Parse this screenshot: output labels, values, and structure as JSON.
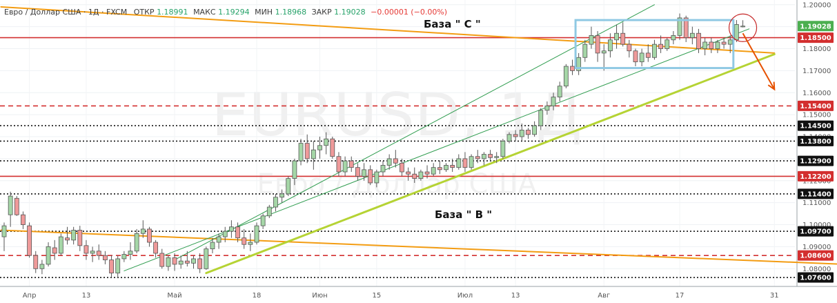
{
  "header": {
    "symbol_text": "Евро / Доллар США · 1Д · FXCM",
    "open_label": "ОТКР",
    "open_value": "1.18991",
    "high_label": "МАКС",
    "high_value": "1.19294",
    "low_label": "МИН",
    "low_value": "1.18968",
    "close_label": "ЗАКР",
    "close_value": "1.19028",
    "change_value": "−0.00001 (−0.00%)"
  },
  "watermark": {
    "symbol": "EURUSD, 1Д",
    "name": "Евро / Доллар США"
  },
  "annotations": {
    "base_c": "База \" С \"",
    "base_b": "База \" В \""
  },
  "colors": {
    "up_candle": "#a5d6a7",
    "down_candle": "#ef9a9a",
    "candle_border": "#555555",
    "resistance_red": "#d32f2f",
    "orange_trend": "#f39c12",
    "green_support": "#b5d334",
    "channel_green": "#2e9c4e",
    "box_blue": "#8fc9e3",
    "current_price_badge": "#4caf50"
  },
  "chart_data": {
    "type": "candlestick",
    "ylim": [
      1.0735,
      1.2015
    ],
    "y_ticks": [
      "1.20000",
      "1.19000",
      "1.18000",
      "1.17000",
      "1.16000",
      "1.15000",
      "1.14000",
      "1.13000",
      "1.12000",
      "1.11000",
      "1.10000",
      "1.09000",
      "1.08000"
    ],
    "x_ticks": [
      "Апр",
      "13",
      "Май",
      "18",
      "Июн",
      "15",
      "Июл",
      "13",
      "Авг",
      "17",
      "31"
    ],
    "price_badges": [
      {
        "label": "1.19028",
        "value": 1.19028,
        "kind": "current"
      },
      {
        "label": "1.18500",
        "value": 1.185,
        "kind": "red"
      },
      {
        "label": "1.15400",
        "value": 1.154,
        "kind": "red"
      },
      {
        "label": "1.14500",
        "value": 1.145,
        "kind": "black"
      },
      {
        "label": "1.13800",
        "value": 1.138,
        "kind": "black"
      },
      {
        "label": "1.12900",
        "value": 1.129,
        "kind": "black"
      },
      {
        "label": "1.12200",
        "value": 1.122,
        "kind": "red"
      },
      {
        "label": "1.11400",
        "value": 1.114,
        "kind": "black"
      },
      {
        "label": "1.09700",
        "value": 1.097,
        "kind": "black"
      },
      {
        "label": "1.08600",
        "value": 1.086,
        "kind": "red"
      },
      {
        "label": "1.07600",
        "value": 1.076,
        "kind": "black"
      }
    ],
    "horizontal_levels": [
      {
        "value": 1.185,
        "style": "solid",
        "color": "red"
      },
      {
        "value": 1.154,
        "style": "dashed",
        "color": "red"
      },
      {
        "value": 1.145,
        "style": "dotted",
        "color": "black"
      },
      {
        "value": 1.138,
        "style": "dotted",
        "color": "black"
      },
      {
        "value": 1.129,
        "style": "dotted",
        "color": "black"
      },
      {
        "value": 1.122,
        "style": "solid",
        "color": "red"
      },
      {
        "value": 1.114,
        "style": "dotted",
        "color": "black"
      },
      {
        "value": 1.097,
        "style": "dotted",
        "color": "black"
      },
      {
        "value": 1.086,
        "style": "dashed",
        "color": "red"
      },
      {
        "value": 1.076,
        "style": "dotted",
        "color": "black"
      }
    ],
    "candles": [
      {
        "o": 1.0945,
        "h": 1.101,
        "l": 1.088,
        "c": 1.0995
      },
      {
        "o": 1.1045,
        "h": 1.115,
        "l": 1.099,
        "c": 1.113
      },
      {
        "o": 1.112,
        "h": 1.113,
        "l": 1.104,
        "c": 1.1045
      },
      {
        "o": 1.1045,
        "h": 1.106,
        "l": 1.098,
        "c": 1.1
      },
      {
        "o": 1.0995,
        "h": 1.101,
        "l": 1.085,
        "c": 1.086
      },
      {
        "o": 1.086,
        "h": 1.088,
        "l": 1.078,
        "c": 1.08
      },
      {
        "o": 1.08,
        "h": 1.084,
        "l": 1.0775,
        "c": 1.082
      },
      {
        "o": 1.082,
        "h": 1.092,
        "l": 1.081,
        "c": 1.09
      },
      {
        "o": 1.0895,
        "h": 1.093,
        "l": 1.084,
        "c": 1.087
      },
      {
        "o": 1.087,
        "h": 1.096,
        "l": 1.086,
        "c": 1.0945
      },
      {
        "o": 1.094,
        "h": 1.099,
        "l": 1.091,
        "c": 1.093
      },
      {
        "o": 1.093,
        "h": 1.099,
        "l": 1.091,
        "c": 1.0975
      },
      {
        "o": 1.0975,
        "h": 1.0995,
        "l": 1.088,
        "c": 1.0905
      },
      {
        "o": 1.0905,
        "h": 1.093,
        "l": 1.084,
        "c": 1.087
      },
      {
        "o": 1.087,
        "h": 1.09,
        "l": 1.083,
        "c": 1.088
      },
      {
        "o": 1.088,
        "h": 1.091,
        "l": 1.084,
        "c": 1.086
      },
      {
        "o": 1.086,
        "h": 1.088,
        "l": 1.082,
        "c": 1.084
      },
      {
        "o": 1.084,
        "h": 1.086,
        "l": 1.076,
        "c": 1.078
      },
      {
        "o": 1.078,
        "h": 1.086,
        "l": 1.076,
        "c": 1.0845
      },
      {
        "o": 1.0845,
        "h": 1.088,
        "l": 1.083,
        "c": 1.0865
      },
      {
        "o": 1.0865,
        "h": 1.092,
        "l": 1.084,
        "c": 1.088
      },
      {
        "o": 1.088,
        "h": 1.098,
        "l": 1.087,
        "c": 1.096
      },
      {
        "o": 1.096,
        "h": 1.102,
        "l": 1.094,
        "c": 1.098
      },
      {
        "o": 1.098,
        "h": 1.099,
        "l": 1.09,
        "c": 1.092
      },
      {
        "o": 1.092,
        "h": 1.093,
        "l": 1.085,
        "c": 1.087
      },
      {
        "o": 1.087,
        "h": 1.089,
        "l": 1.08,
        "c": 1.081
      },
      {
        "o": 1.081,
        "h": 1.086,
        "l": 1.079,
        "c": 1.085
      },
      {
        "o": 1.085,
        "h": 1.087,
        "l": 1.079,
        "c": 1.082
      },
      {
        "o": 1.082,
        "h": 1.086,
        "l": 1.08,
        "c": 1.0835
      },
      {
        "o": 1.0835,
        "h": 1.088,
        "l": 1.081,
        "c": 1.0825
      },
      {
        "o": 1.0825,
        "h": 1.086,
        "l": 1.08,
        "c": 1.0845
      },
      {
        "o": 1.0845,
        "h": 1.087,
        "l": 1.078,
        "c": 1.08
      },
      {
        "o": 1.08,
        "h": 1.09,
        "l": 1.0795,
        "c": 1.089
      },
      {
        "o": 1.089,
        "h": 1.094,
        "l": 1.087,
        "c": 1.092
      },
      {
        "o": 1.092,
        "h": 1.096,
        "l": 1.089,
        "c": 1.0945
      },
      {
        "o": 1.0945,
        "h": 1.099,
        "l": 1.092,
        "c": 1.097
      },
      {
        "o": 1.097,
        "h": 1.102,
        "l": 1.094,
        "c": 1.099
      },
      {
        "o": 1.099,
        "h": 1.101,
        "l": 1.092,
        "c": 1.094
      },
      {
        "o": 1.094,
        "h": 1.098,
        "l": 1.089,
        "c": 1.091
      },
      {
        "o": 1.091,
        "h": 1.096,
        "l": 1.088,
        "c": 1.092
      },
      {
        "o": 1.092,
        "h": 1.101,
        "l": 1.091,
        "c": 1.0995
      },
      {
        "o": 1.0995,
        "h": 1.105,
        "l": 1.098,
        "c": 1.104
      },
      {
        "o": 1.104,
        "h": 1.109,
        "l": 1.103,
        "c": 1.108
      },
      {
        "o": 1.108,
        "h": 1.114,
        "l": 1.106,
        "c": 1.1125
      },
      {
        "o": 1.1125,
        "h": 1.116,
        "l": 1.11,
        "c": 1.114
      },
      {
        "o": 1.114,
        "h": 1.122,
        "l": 1.113,
        "c": 1.121
      },
      {
        "o": 1.121,
        "h": 1.13,
        "l": 1.118,
        "c": 1.129
      },
      {
        "o": 1.129,
        "h": 1.139,
        "l": 1.127,
        "c": 1.137
      },
      {
        "o": 1.137,
        "h": 1.141,
        "l": 1.128,
        "c": 1.13
      },
      {
        "o": 1.13,
        "h": 1.138,
        "l": 1.125,
        "c": 1.134
      },
      {
        "o": 1.134,
        "h": 1.14,
        "l": 1.13,
        "c": 1.136
      },
      {
        "o": 1.136,
        "h": 1.142,
        "l": 1.132,
        "c": 1.139
      },
      {
        "o": 1.139,
        "h": 1.14,
        "l": 1.13,
        "c": 1.131
      },
      {
        "o": 1.131,
        "h": 1.133,
        "l": 1.122,
        "c": 1.124
      },
      {
        "o": 1.124,
        "h": 1.131,
        "l": 1.122,
        "c": 1.129
      },
      {
        "o": 1.129,
        "h": 1.131,
        "l": 1.124,
        "c": 1.126
      },
      {
        "o": 1.126,
        "h": 1.128,
        "l": 1.12,
        "c": 1.122
      },
      {
        "o": 1.122,
        "h": 1.128,
        "l": 1.12,
        "c": 1.125
      },
      {
        "o": 1.125,
        "h": 1.127,
        "l": 1.118,
        "c": 1.119
      },
      {
        "o": 1.119,
        "h": 1.125,
        "l": 1.117,
        "c": 1.124
      },
      {
        "o": 1.124,
        "h": 1.129,
        "l": 1.122,
        "c": 1.127
      },
      {
        "o": 1.127,
        "h": 1.132,
        "l": 1.125,
        "c": 1.13
      },
      {
        "o": 1.13,
        "h": 1.134,
        "l": 1.126,
        "c": 1.128
      },
      {
        "o": 1.128,
        "h": 1.13,
        "l": 1.122,
        "c": 1.124
      },
      {
        "o": 1.124,
        "h": 1.126,
        "l": 1.12,
        "c": 1.123
      },
      {
        "o": 1.123,
        "h": 1.126,
        "l": 1.119,
        "c": 1.121
      },
      {
        "o": 1.121,
        "h": 1.125,
        "l": 1.12,
        "c": 1.124
      },
      {
        "o": 1.124,
        "h": 1.127,
        "l": 1.121,
        "c": 1.123
      },
      {
        "o": 1.123,
        "h": 1.128,
        "l": 1.122,
        "c": 1.126
      },
      {
        "o": 1.126,
        "h": 1.129,
        "l": 1.123,
        "c": 1.125
      },
      {
        "o": 1.125,
        "h": 1.128,
        "l": 1.124,
        "c": 1.127
      },
      {
        "o": 1.127,
        "h": 1.13,
        "l": 1.124,
        "c": 1.126
      },
      {
        "o": 1.126,
        "h": 1.132,
        "l": 1.125,
        "c": 1.13
      },
      {
        "o": 1.13,
        "h": 1.133,
        "l": 1.124,
        "c": 1.126
      },
      {
        "o": 1.126,
        "h": 1.132,
        "l": 1.125,
        "c": 1.131
      },
      {
        "o": 1.131,
        "h": 1.134,
        "l": 1.128,
        "c": 1.13
      },
      {
        "o": 1.13,
        "h": 1.133,
        "l": 1.127,
        "c": 1.132
      },
      {
        "o": 1.132,
        "h": 1.134,
        "l": 1.129,
        "c": 1.1305
      },
      {
        "o": 1.1305,
        "h": 1.133,
        "l": 1.128,
        "c": 1.131
      },
      {
        "o": 1.131,
        "h": 1.139,
        "l": 1.13,
        "c": 1.138
      },
      {
        "o": 1.138,
        "h": 1.142,
        "l": 1.137,
        "c": 1.141
      },
      {
        "o": 1.141,
        "h": 1.143,
        "l": 1.138,
        "c": 1.14
      },
      {
        "o": 1.14,
        "h": 1.146,
        "l": 1.138,
        "c": 1.143
      },
      {
        "o": 1.143,
        "h": 1.144,
        "l": 1.139,
        "c": 1.141
      },
      {
        "o": 1.141,
        "h": 1.147,
        "l": 1.14,
        "c": 1.145
      },
      {
        "o": 1.145,
        "h": 1.153,
        "l": 1.143,
        "c": 1.152
      },
      {
        "o": 1.152,
        "h": 1.156,
        "l": 1.15,
        "c": 1.154
      },
      {
        "o": 1.154,
        "h": 1.16,
        "l": 1.152,
        "c": 1.158
      },
      {
        "o": 1.158,
        "h": 1.165,
        "l": 1.156,
        "c": 1.163
      },
      {
        "o": 1.163,
        "h": 1.173,
        "l": 1.162,
        "c": 1.172
      },
      {
        "o": 1.172,
        "h": 1.175,
        "l": 1.168,
        "c": 1.17
      },
      {
        "o": 1.17,
        "h": 1.178,
        "l": 1.168,
        "c": 1.176
      },
      {
        "o": 1.176,
        "h": 1.184,
        "l": 1.174,
        "c": 1.182
      },
      {
        "o": 1.182,
        "h": 1.19,
        "l": 1.18,
        "c": 1.186
      },
      {
        "o": 1.186,
        "h": 1.188,
        "l": 1.174,
        "c": 1.178
      },
      {
        "o": 1.178,
        "h": 1.182,
        "l": 1.17,
        "c": 1.179
      },
      {
        "o": 1.179,
        "h": 1.187,
        "l": 1.176,
        "c": 1.184
      },
      {
        "o": 1.184,
        "h": 1.191,
        "l": 1.18,
        "c": 1.187
      },
      {
        "o": 1.187,
        "h": 1.192,
        "l": 1.181,
        "c": 1.182
      },
      {
        "o": 1.182,
        "h": 1.184,
        "l": 1.176,
        "c": 1.179
      },
      {
        "o": 1.179,
        "h": 1.18,
        "l": 1.172,
        "c": 1.174
      },
      {
        "o": 1.174,
        "h": 1.18,
        "l": 1.172,
        "c": 1.178
      },
      {
        "o": 1.178,
        "h": 1.182,
        "l": 1.174,
        "c": 1.176
      },
      {
        "o": 1.176,
        "h": 1.184,
        "l": 1.175,
        "c": 1.182
      },
      {
        "o": 1.182,
        "h": 1.186,
        "l": 1.178,
        "c": 1.18
      },
      {
        "o": 1.18,
        "h": 1.185,
        "l": 1.179,
        "c": 1.184
      },
      {
        "o": 1.184,
        "h": 1.188,
        "l": 1.182,
        "c": 1.186
      },
      {
        "o": 1.186,
        "h": 1.196,
        "l": 1.184,
        "c": 1.194
      },
      {
        "o": 1.194,
        "h": 1.195,
        "l": 1.183,
        "c": 1.185
      },
      {
        "o": 1.185,
        "h": 1.19,
        "l": 1.182,
        "c": 1.187
      },
      {
        "o": 1.187,
        "h": 1.189,
        "l": 1.178,
        "c": 1.18
      },
      {
        "o": 1.18,
        "h": 1.185,
        "l": 1.177,
        "c": 1.183
      },
      {
        "o": 1.183,
        "h": 1.185,
        "l": 1.178,
        "c": 1.18
      },
      {
        "o": 1.18,
        "h": 1.184,
        "l": 1.178,
        "c": 1.183
      },
      {
        "o": 1.183,
        "h": 1.185,
        "l": 1.18,
        "c": 1.182
      },
      {
        "o": 1.182,
        "h": 1.186,
        "l": 1.178,
        "c": 1.184
      },
      {
        "o": 1.184,
        "h": 1.193,
        "l": 1.183,
        "c": 1.191
      },
      {
        "o": 1.18991,
        "h": 1.19294,
        "l": 1.18968,
        "c": 1.19028
      }
    ],
    "trendlines": [
      {
        "kind": "orange-upper",
        "from": {
          "i": -0.5,
          "v": 1.199
        },
        "to": {
          "i": 122,
          "v": 1.178
        }
      },
      {
        "kind": "orange-lower",
        "from": {
          "i": -0.5,
          "v": 1.0975
        },
        "to": {
          "i": 133,
          "v": 1.082
        }
      },
      {
        "kind": "green-support",
        "from": {
          "i": 32,
          "v": 1.078
        },
        "to": {
          "i": 122,
          "v": 1.1775
        }
      },
      {
        "kind": "channel-upper",
        "from": {
          "i": 27,
          "v": 1.084
        },
        "to": {
          "i": 103,
          "v": 1.2
        }
      },
      {
        "kind": "channel-lower",
        "from": {
          "i": 19,
          "v": 1.079
        },
        "to": {
          "i": 118,
          "v": 1.189
        }
      }
    ],
    "box": {
      "i0": 90.5,
      "i1": 115.5,
      "v_top": 1.193,
      "v_bottom": 1.1712
    },
    "circle": {
      "i": 117,
      "v": 1.1895
    },
    "forecast_arrow": {
      "from": {
        "i": 117,
        "v": 1.187
      },
      "to": {
        "i": 122,
        "v": 1.1615
      }
    }
  }
}
